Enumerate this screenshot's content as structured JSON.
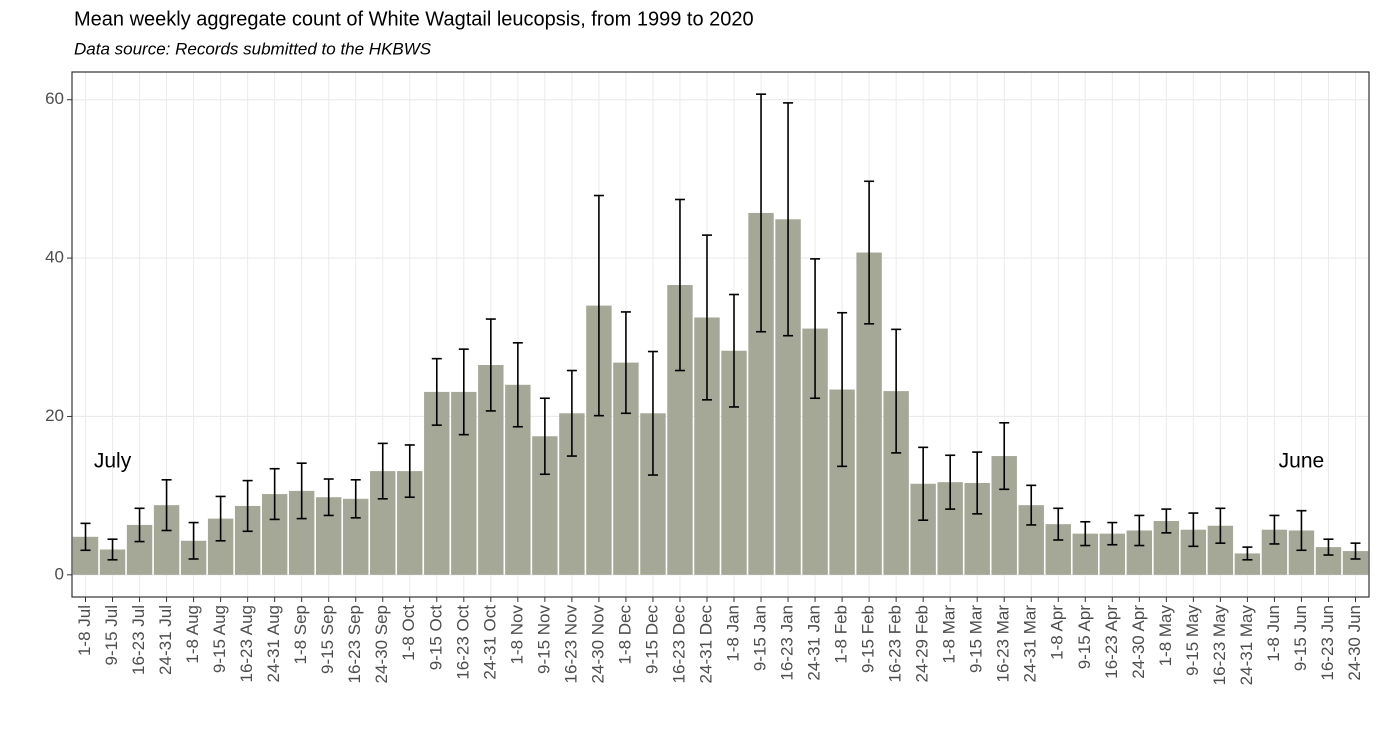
{
  "chart_data": {
    "type": "bar",
    "title": "Mean weekly aggregate count of White Wagtail leucopsis, from 1999 to 2020",
    "subtitle": "Data source: Records submitted to the HKBWS",
    "annotations": [
      "July",
      "June"
    ],
    "categories": [
      "1-8 Jul",
      "9-15 Jul",
      "16-23 Jul",
      "24-31 Jul",
      "1-8 Aug",
      "9-15 Aug",
      "16-23 Aug",
      "24-31 Aug",
      "1-8 Sep",
      "9-15 Sep",
      "16-23 Sep",
      "24-30 Sep",
      "1-8 Oct",
      "9-15 Oct",
      "16-23 Oct",
      "24-31 Oct",
      "1-8 Nov",
      "9-15 Nov",
      "16-23 Nov",
      "24-30 Nov",
      "1-8 Dec",
      "9-15 Dec",
      "16-23 Dec",
      "24-31 Dec",
      "1-8 Jan",
      "9-15 Jan",
      "16-23 Jan",
      "24-31 Jan",
      "1-8 Feb",
      "9-15 Feb",
      "16-23 Feb",
      "24-29 Feb",
      "1-8 Mar",
      "9-15 Mar",
      "16-23 Mar",
      "24-31 Mar",
      "1-8 Apr",
      "9-15 Apr",
      "16-23 Apr",
      "24-30 Apr",
      "1-8 May",
      "9-15 May",
      "16-23 May",
      "24-31 May",
      "1-8 Jun",
      "9-15 Jun",
      "16-23 Jun",
      "24-30 Jun"
    ],
    "values": [
      4.8,
      3.2,
      6.3,
      8.8,
      4.3,
      7.1,
      8.7,
      10.2,
      10.6,
      9.8,
      9.6,
      13.1,
      13.1,
      23.1,
      23.1,
      26.5,
      24.0,
      17.5,
      20.4,
      34.0,
      26.8,
      20.4,
      36.6,
      32.5,
      28.3,
      45.7,
      44.9,
      31.1,
      23.4,
      40.7,
      23.2,
      11.5,
      11.7,
      11.6,
      15.0,
      8.8,
      6.4,
      5.2,
      5.2,
      5.6,
      6.8,
      5.7,
      6.2,
      2.7,
      5.7,
      5.6,
      3.5,
      3.0
    ],
    "errors": [
      1.7,
      1.3,
      2.1,
      3.2,
      2.3,
      2.8,
      3.2,
      3.2,
      3.5,
      2.3,
      2.4,
      3.5,
      3.3,
      4.2,
      5.4,
      5.8,
      5.3,
      4.8,
      5.4,
      13.9,
      6.4,
      7.8,
      10.8,
      10.4,
      7.1,
      15.0,
      14.7,
      8.8,
      9.7,
      9.0,
      7.8,
      4.6,
      3.4,
      3.9,
      4.2,
      2.5,
      2.0,
      1.5,
      1.4,
      1.9,
      1.5,
      2.1,
      2.2,
      0.8,
      1.8,
      2.5,
      1.0,
      1.0
    ],
    "color": "#a5a797",
    "ylim": [
      -2.8,
      63.5
    ],
    "yticks": [
      0,
      20,
      40,
      60
    ],
    "grid": true
  }
}
